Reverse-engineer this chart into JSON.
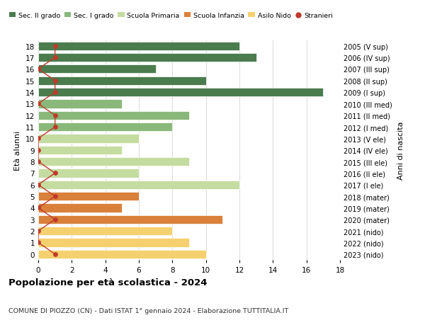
{
  "ages": [
    18,
    17,
    16,
    15,
    14,
    13,
    12,
    11,
    10,
    9,
    8,
    7,
    6,
    5,
    4,
    3,
    2,
    1,
    0
  ],
  "right_labels": [
    "2005 (V sup)",
    "2006 (IV sup)",
    "2007 (III sup)",
    "2008 (II sup)",
    "2009 (I sup)",
    "2010 (III med)",
    "2011 (II med)",
    "2012 (I med)",
    "2013 (V ele)",
    "2014 (IV ele)",
    "2015 (III ele)",
    "2016 (II ele)",
    "2017 (I ele)",
    "2018 (mater)",
    "2019 (mater)",
    "2020 (mater)",
    "2021 (nido)",
    "2022 (nido)",
    "2023 (nido)"
  ],
  "bar_values": [
    12,
    13,
    7,
    10,
    17,
    5,
    9,
    8,
    6,
    5,
    9,
    6,
    12,
    6,
    5,
    11,
    8,
    9,
    10
  ],
  "stranieri_values": [
    1,
    1,
    0,
    1,
    1,
    0,
    1,
    1,
    0,
    0,
    0,
    1,
    0,
    1,
    0,
    1,
    0,
    0,
    1
  ],
  "bar_colors": [
    "#4a7c4e",
    "#4a7c4e",
    "#4a7c4e",
    "#4a7c4e",
    "#4a7c4e",
    "#8ab87a",
    "#8ab87a",
    "#8ab87a",
    "#c5dca0",
    "#c5dca0",
    "#c5dca0",
    "#c5dca0",
    "#c5dca0",
    "#d9813a",
    "#d9813a",
    "#d9813a",
    "#f5d06e",
    "#f5d06e",
    "#f5d06e"
  ],
  "legend_colors": [
    "#4a7c4e",
    "#8ab87a",
    "#c5dca0",
    "#d9813a",
    "#f5d06e",
    "#c0392b"
  ],
  "legend_labels": [
    "Sec. II grado",
    "Sec. I grado",
    "Scuola Primaria",
    "Scuola Infanzia",
    "Asilo Nido",
    "Stranieri"
  ],
  "title_bold": "Popolazione per età scolastica - 2024",
  "subtitle": "COMUNE DI PIOZZO (CN) - Dati ISTAT 1° gennaio 2024 - Elaborazione TUTTITALIA.IT",
  "ylabel_left": "Età alunni",
  "ylabel_right": "Anni di nascita",
  "xlim": [
    0,
    18
  ],
  "ylim": [
    -0.5,
    18.5
  ],
  "background_color": "#ffffff",
  "grid_color": "#dddddd",
  "stranieri_color": "#c0392b",
  "bar_height": 0.75
}
